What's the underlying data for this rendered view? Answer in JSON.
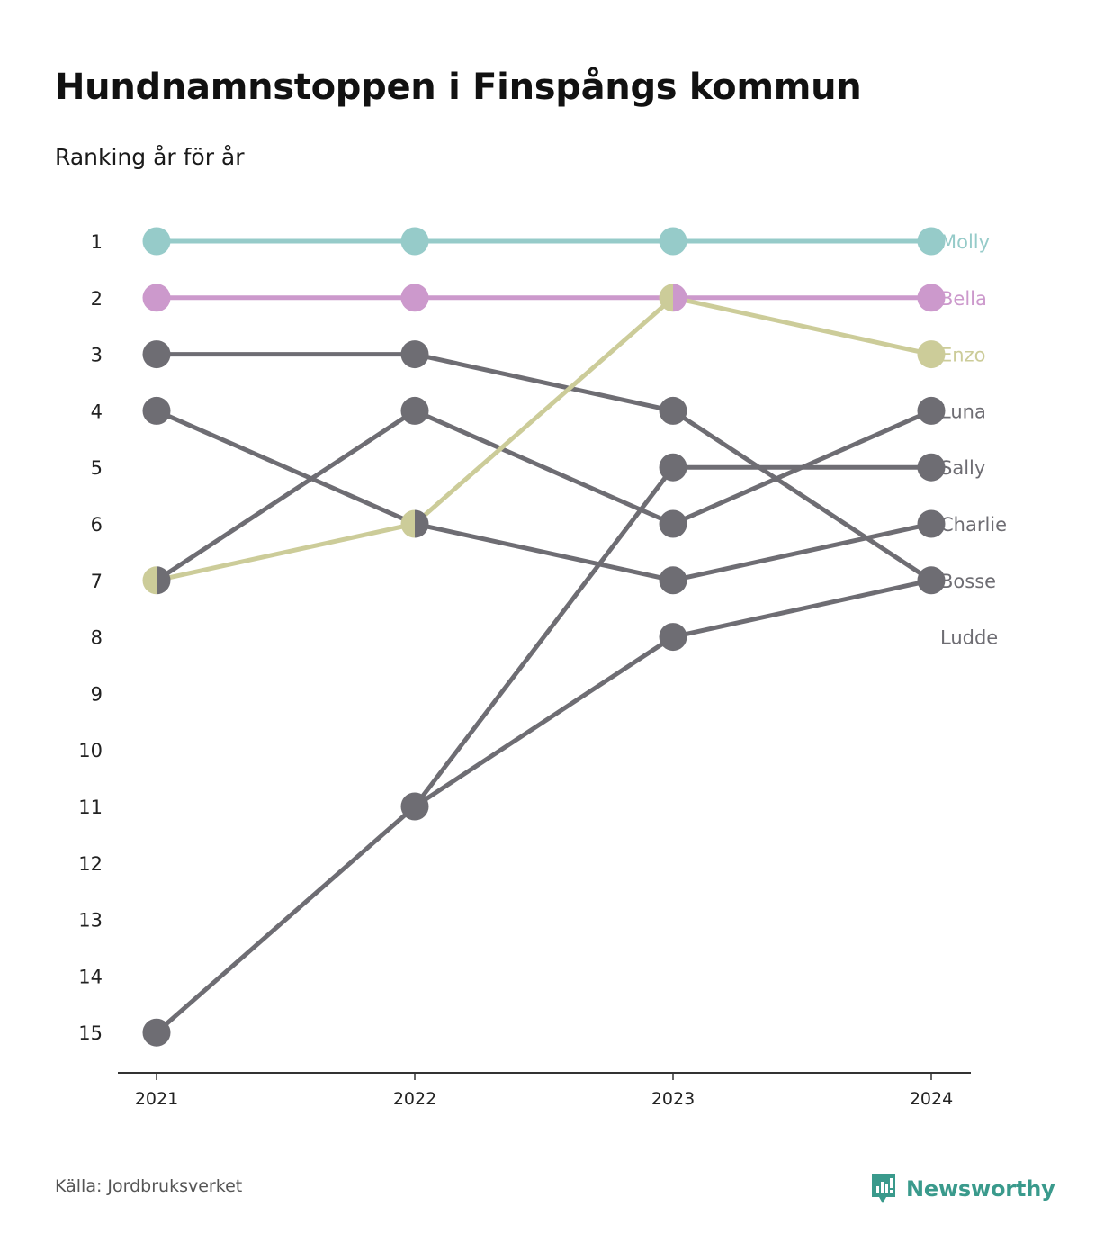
{
  "header": {
    "title": "Hundnamnstoppen i Finspångs kommun",
    "subtitle": "Ranking år för år"
  },
  "footer": {
    "source": "Källa: Jordbruksverket",
    "brand": "Newsworthy",
    "brand_icon": "newsworthy-logo-icon",
    "brand_color": "#3a9a8c"
  },
  "chart_data": {
    "type": "line",
    "chart_style": "bump chart (rank over time)",
    "title": "Hundnamnstoppen i Finspångs kommun",
    "subtitle": "Ranking år för år",
    "x": [
      "2021",
      "2022",
      "2023",
      "2024"
    ],
    "y_ticks": [
      "1",
      "2",
      "3",
      "4",
      "5",
      "6",
      "7",
      "8",
      "9",
      "10",
      "11",
      "12",
      "13",
      "14",
      "15"
    ],
    "ylim": [
      1,
      15
    ],
    "y_inverted": true,
    "grid": false,
    "legend": "direct labels at right end of lines",
    "series": [
      {
        "name": "Molly",
        "values": [
          1,
          1,
          1,
          1
        ],
        "color": "#96cbc9"
      },
      {
        "name": "Bella",
        "values": [
          2,
          2,
          2,
          2
        ],
        "color": "#cc99cc"
      },
      {
        "name": "Enzo",
        "values": [
          7,
          6,
          2,
          3
        ],
        "color": "#cccc99"
      },
      {
        "name": "Luna",
        "values": [
          7,
          4,
          6,
          4
        ],
        "color": "#6e6d73"
      },
      {
        "name": "Sally",
        "values": [
          15,
          11,
          5,
          5
        ],
        "color": "#6e6d73"
      },
      {
        "name": "Charlie",
        "values": [
          4,
          6,
          7,
          6
        ],
        "color": "#6e6d73"
      },
      {
        "name": "Bosse",
        "values": [
          3,
          3,
          4,
          7
        ],
        "color": "#6e6d73"
      },
      {
        "name": "Ludde",
        "values": [
          null,
          11,
          8,
          7
        ],
        "color": "#6e6d73"
      }
    ]
  }
}
